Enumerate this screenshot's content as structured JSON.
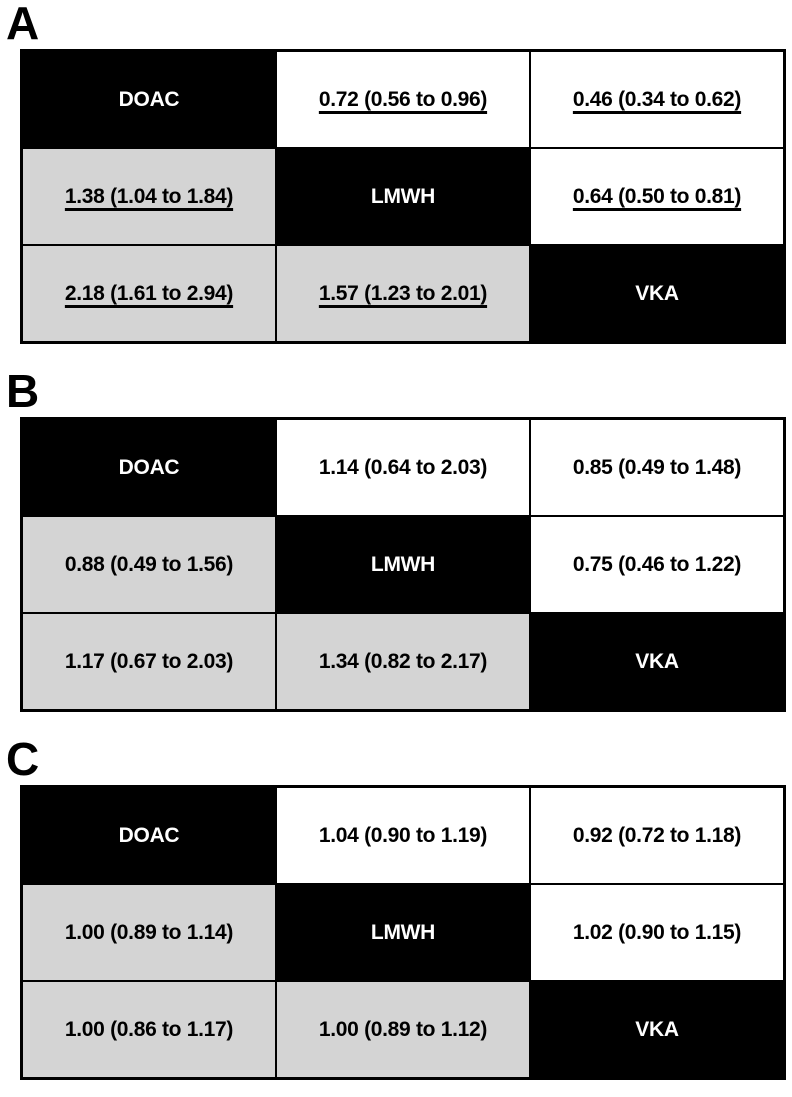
{
  "figure": {
    "treatments": [
      "DOAC",
      "LMWH",
      "VKA"
    ],
    "panels": [
      {
        "label": "A",
        "underlined_values": true,
        "matrix": [
          [
            "DOAC",
            "0.72 (0.56 to 0.96)",
            "0.46 (0.34 to 0.62)"
          ],
          [
            "1.38 (1.04 to 1.84)",
            "LMWH",
            "0.64 (0.50 to 0.81)"
          ],
          [
            "2.18 (1.61 to 2.94)",
            "1.57 (1.23 to 2.01)",
            "VKA"
          ]
        ]
      },
      {
        "label": "B",
        "underlined_values": false,
        "matrix": [
          [
            "DOAC",
            "1.14 (0.64 to 2.03)",
            "0.85 (0.49 to 1.48)"
          ],
          [
            "0.88 (0.49 to 1.56)",
            "LMWH",
            "0.75 (0.46 to 1.22)"
          ],
          [
            "1.17 (0.67 to 2.03)",
            "1.34 (0.82 to 2.17)",
            "VKA"
          ]
        ]
      },
      {
        "label": "C",
        "underlined_values": false,
        "matrix": [
          [
            "DOAC",
            "1.04 (0.90 to 1.19)",
            "0.92 (0.72 to 1.18)"
          ],
          [
            "1.00 (0.89 to 1.14)",
            "LMWH",
            "1.02 (0.90 to 1.15)"
          ],
          [
            "1.00 (0.86 to 1.17)",
            "1.00 (0.89 to 1.12)",
            "VKA"
          ]
        ]
      }
    ],
    "colors": {
      "diagonal_bg": "#000000",
      "diagonal_text": "#ffffff",
      "lower_triangle_bg": "#d4d4d4",
      "upper_triangle_bg": "#ffffff",
      "border": "#000000",
      "value_text": "#000000"
    }
  }
}
